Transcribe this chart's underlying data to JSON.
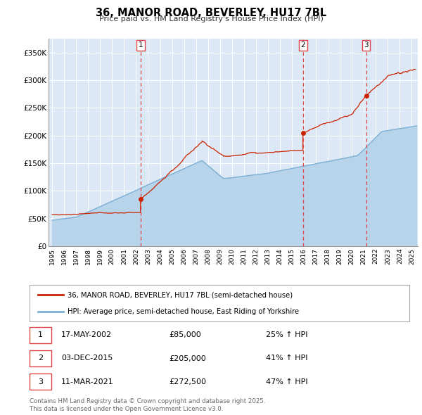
{
  "title": "36, MANOR ROAD, BEVERLEY, HU17 7BL",
  "subtitle": "Price paid vs. HM Land Registry's House Price Index (HPI)",
  "plot_bg_color": "#dce8f5",
  "ylim": [
    0,
    375000
  ],
  "xlim_start": 1994.7,
  "xlim_end": 2025.5,
  "yticks": [
    0,
    50000,
    100000,
    150000,
    200000,
    250000,
    300000,
    350000
  ],
  "ytick_labels": [
    "£0",
    "£50K",
    "£100K",
    "£150K",
    "£200K",
    "£250K",
    "£300K",
    "£350K"
  ],
  "xticks": [
    1995,
    1996,
    1997,
    1998,
    1999,
    2000,
    2001,
    2002,
    2003,
    2004,
    2005,
    2006,
    2007,
    2008,
    2009,
    2010,
    2011,
    2012,
    2013,
    2014,
    2015,
    2016,
    2017,
    2018,
    2019,
    2020,
    2021,
    2022,
    2023,
    2024,
    2025
  ],
  "hpi_line_color": "#7bafd4",
  "hpi_fill_color": "#b8d4ea",
  "price_color": "#cc2200",
  "vline_color": "#dd4444",
  "transaction1": {
    "date": 2002.37,
    "price": 85000,
    "label": "1",
    "date_str": "17-MAY-2002",
    "price_str": "£85,000",
    "hpi_str": "25% ↑ HPI"
  },
  "transaction2": {
    "date": 2015.92,
    "price": 205000,
    "label": "2",
    "date_str": "03-DEC-2015",
    "price_str": "£205,000",
    "hpi_str": "41% ↑ HPI"
  },
  "transaction3": {
    "date": 2021.19,
    "price": 272500,
    "label": "3",
    "date_str": "11-MAR-2021",
    "price_str": "£272,500",
    "hpi_str": "47% ↑ HPI"
  },
  "legend1": "36, MANOR ROAD, BEVERLEY, HU17 7BL (semi-detached house)",
  "legend2": "HPI: Average price, semi-detached house, East Riding of Yorkshire",
  "footer": "Contains HM Land Registry data © Crown copyright and database right 2025.\nThis data is licensed under the Open Government Licence v3.0."
}
